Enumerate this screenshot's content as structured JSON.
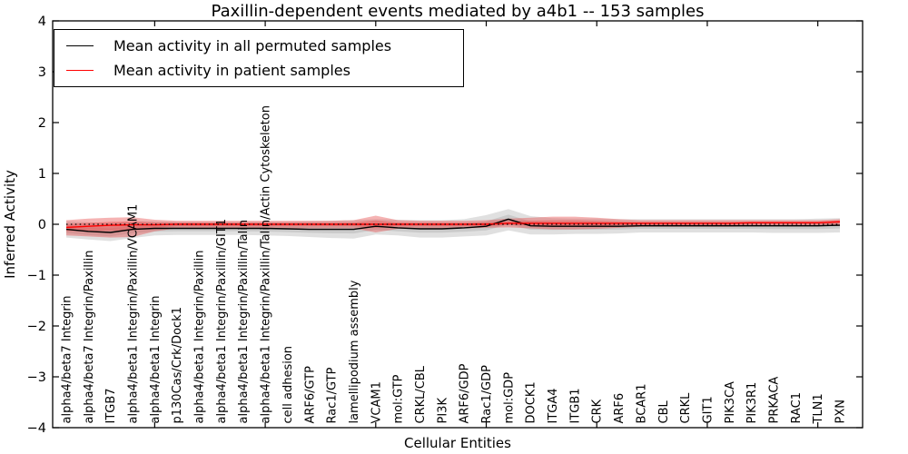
{
  "title": "Paxillin-dependent events mediated by a4b1 -- 153 samples",
  "legend": {
    "items": [
      {
        "label": "Mean activity in all permuted samples",
        "color": "#000000"
      },
      {
        "label": "Mean activity in patient samples",
        "color": "#ff0000"
      }
    ]
  },
  "chart_data": {
    "type": "line",
    "title": "Paxillin-dependent events mediated by a4b1 -- 153 samples",
    "xlabel": "Cellular Entities",
    "ylabel": "Inferred Activity",
    "ylim": [
      -4,
      4
    ],
    "yticks": [
      -4,
      -3,
      -2,
      -1,
      0,
      1,
      2,
      3,
      4
    ],
    "xtick_interval": 5,
    "grid": false,
    "legend_position": "upper left",
    "zero_line_style": "dotted",
    "categories": [
      "alpha4/beta7 Integrin",
      "alpha4/beta7 Integrin/Paxillin",
      "ITGB7",
      "alpha4/beta1 Integrin/Paxillin/VCAM1",
      "alpha4/beta1 Integrin",
      "p130Cas/Crk/Dock1",
      "alpha4/beta1 Integrin/Paxillin",
      "alpha4/beta1 Integrin/Paxillin/GIT1",
      "alpha4/beta1 Integrin/Paxillin/Talin",
      "alpha4/beta1 Integrin/Paxillin/Talin/Actin Cytoskeleton",
      "cell adhesion",
      "ARF6/GTP",
      "Rac1/GTP",
      "lamellipodium assembly",
      "VCAM1",
      "mol:GTP",
      "CRKL/CBL",
      "PI3K",
      "ARF6/GDP",
      "Rac1/GDP",
      "mol:GDP",
      "DOCK1",
      "ITGA4",
      "ITGB1",
      "CRK",
      "ARF6",
      "BCAR1",
      "CBL",
      "CRKL",
      "GIT1",
      "PIK3CA",
      "PIK3R1",
      "PRKACA",
      "RAC1",
      "TLN1",
      "PXN"
    ],
    "series": [
      {
        "name": "Mean activity in all permuted samples",
        "color": "#000000",
        "band_color": "#999999",
        "values": [
          -0.1,
          -0.14,
          -0.16,
          -0.1,
          -0.08,
          -0.08,
          -0.08,
          -0.08,
          -0.08,
          -0.08,
          -0.09,
          -0.1,
          -0.1,
          -0.1,
          -0.04,
          -0.07,
          -0.09,
          -0.09,
          -0.07,
          -0.04,
          0.1,
          -0.03,
          -0.04,
          -0.04,
          -0.04,
          -0.04,
          -0.03,
          -0.03,
          -0.03,
          -0.03,
          -0.03,
          -0.03,
          -0.03,
          -0.03,
          -0.03,
          -0.02
        ],
        "band_upper": [
          0.06,
          0.04,
          0.02,
          0.06,
          0.06,
          0.05,
          0.05,
          0.05,
          0.05,
          0.05,
          0.05,
          0.06,
          0.07,
          0.08,
          0.1,
          0.09,
          0.08,
          0.08,
          0.1,
          0.18,
          0.3,
          0.16,
          0.12,
          0.11,
          0.11,
          0.1,
          0.1,
          0.1,
          0.1,
          0.1,
          0.1,
          0.1,
          0.1,
          0.1,
          0.11,
          0.12
        ],
        "band_lower": [
          -0.26,
          -0.3,
          -0.33,
          -0.27,
          -0.22,
          -0.21,
          -0.21,
          -0.21,
          -0.21,
          -0.22,
          -0.23,
          -0.25,
          -0.27,
          -0.28,
          -0.2,
          -0.22,
          -0.26,
          -0.26,
          -0.24,
          -0.22,
          -0.12,
          -0.2,
          -0.2,
          -0.19,
          -0.19,
          -0.18,
          -0.16,
          -0.16,
          -0.16,
          -0.16,
          -0.16,
          -0.16,
          -0.17,
          -0.17,
          -0.17,
          -0.16
        ]
      },
      {
        "name": "Mean activity in patient samples",
        "color": "#ff0000",
        "band_color": "#e84a4a",
        "values": [
          -0.06,
          -0.04,
          -0.02,
          -0.01,
          -0.01,
          0,
          0,
          0,
          0,
          0,
          0,
          0,
          0,
          0,
          0,
          0,
          0,
          0,
          0,
          0,
          0.02,
          0.02,
          0.02,
          0.02,
          0.02,
          0.02,
          0.02,
          0.02,
          0.02,
          0.02,
          0.02,
          0.03,
          0.03,
          0.03,
          0.03,
          0.05
        ],
        "band_upper": [
          0.08,
          0.11,
          0.13,
          0.14,
          0.09,
          0.07,
          0.07,
          0.07,
          0.07,
          0.07,
          0.07,
          0.07,
          0.07,
          0.08,
          0.17,
          0.08,
          0.07,
          0.07,
          0.07,
          0.08,
          0.11,
          0.13,
          0.15,
          0.15,
          0.13,
          0.1,
          0.08,
          0.08,
          0.08,
          0.08,
          0.08,
          0.08,
          0.08,
          0.08,
          0.08,
          0.1
        ],
        "band_lower": [
          -0.22,
          -0.24,
          -0.26,
          -0.25,
          -0.14,
          -0.08,
          -0.08,
          -0.08,
          -0.08,
          -0.08,
          -0.08,
          -0.08,
          -0.08,
          -0.08,
          -0.16,
          -0.09,
          -0.08,
          -0.08,
          -0.08,
          -0.07,
          -0.06,
          -0.08,
          -0.1,
          -0.1,
          -0.09,
          -0.07,
          -0.05,
          -0.05,
          -0.05,
          -0.05,
          -0.05,
          -0.04,
          -0.04,
          -0.04,
          -0.04,
          -0.03
        ]
      }
    ]
  }
}
